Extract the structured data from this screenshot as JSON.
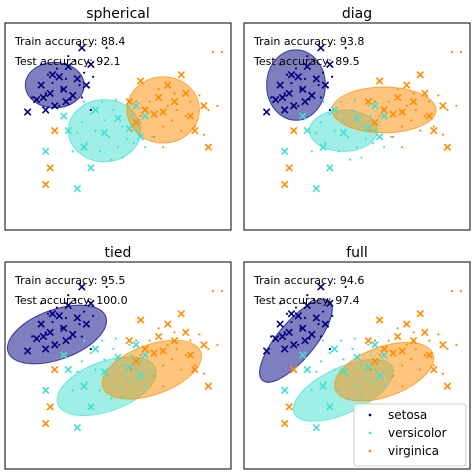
{
  "colors": {
    "setosa": "#000080",
    "versicolor": "#40e0d0",
    "virginica": "#ff8c00"
  },
  "legend": {
    "placement": "bottom-right",
    "panel": 3,
    "entries": [
      {
        "key": "setosa",
        "label": "setosa"
      },
      {
        "key": "versicolor",
        "label": "versicolor"
      },
      {
        "key": "virginica",
        "label": "virginica"
      }
    ]
  },
  "chart_data": [
    {
      "type": "scatter",
      "title": "spherical",
      "train_label": "Train accuracy: 88.4",
      "test_label": "Test accuracy: 92.1",
      "xlim": [
        0,
        100
      ],
      "ylim": [
        0,
        100
      ],
      "ellipses": [
        {
          "class": "setosa",
          "cx": 22,
          "cy": 70,
          "rx": 13,
          "ry": 11,
          "angle": 0
        },
        {
          "class": "versicolor",
          "cx": 44,
          "cy": 48,
          "rx": 16,
          "ry": 15,
          "angle": 0
        },
        {
          "class": "virginica",
          "cx": 70,
          "cy": 58,
          "rx": 16,
          "ry": 16,
          "angle": 0
        }
      ]
    },
    {
      "type": "scatter",
      "title": "diag",
      "train_label": "Train accuracy: 93.8",
      "test_label": "Test accuracy: 89.5",
      "xlim": [
        0,
        100
      ],
      "ylim": [
        0,
        100
      ],
      "ellipses": [
        {
          "class": "setosa",
          "cx": 23,
          "cy": 70,
          "rx": 13,
          "ry": 17,
          "angle": 0
        },
        {
          "class": "versicolor",
          "cx": 44,
          "cy": 48,
          "rx": 15,
          "ry": 10,
          "angle": 0
        },
        {
          "class": "virginica",
          "cx": 62,
          "cy": 58,
          "rx": 23,
          "ry": 11,
          "angle": 0
        }
      ]
    },
    {
      "type": "scatter",
      "title": "tied",
      "train_label": "Train accuracy: 95.5",
      "test_label": "Test accuracy: 100.0",
      "xlim": [
        0,
        100
      ],
      "ylim": [
        0,
        100
      ],
      "ellipses": [
        {
          "class": "setosa",
          "cx": 23,
          "cy": 65,
          "rx": 23,
          "ry": 12,
          "angle": 20
        },
        {
          "class": "versicolor",
          "cx": 45,
          "cy": 40,
          "rx": 23,
          "ry": 12,
          "angle": 20
        },
        {
          "class": "virginica",
          "cx": 65,
          "cy": 48,
          "rx": 23,
          "ry": 12,
          "angle": 20
        }
      ]
    },
    {
      "type": "scatter",
      "title": "full",
      "train_label": "Train accuracy: 94.6",
      "test_label": "Test accuracy: 97.4",
      "xlim": [
        0,
        100
      ],
      "ylim": [
        0,
        100
      ],
      "ellipses": [
        {
          "class": "setosa",
          "cx": 23,
          "cy": 62,
          "rx": 23,
          "ry": 9,
          "angle": 50
        },
        {
          "class": "versicolor",
          "cx": 44,
          "cy": 38,
          "rx": 24,
          "ry": 11,
          "angle": 25
        },
        {
          "class": "virginica",
          "cx": 62,
          "cy": 47,
          "rx": 23,
          "ry": 12,
          "angle": 20
        }
      ]
    }
  ],
  "points": {
    "setosa": {
      "dots": [
        [
          16,
          80
        ],
        [
          19,
          75
        ],
        [
          21,
          71
        ],
        [
          23,
          78
        ],
        [
          25,
          68
        ],
        [
          27,
          73
        ],
        [
          29,
          63
        ],
        [
          31,
          82
        ],
        [
          33,
          70
        ],
        [
          35,
          76
        ],
        [
          37,
          69
        ],
        [
          39,
          74
        ],
        [
          18,
          66
        ],
        [
          28,
          84
        ],
        [
          45,
          88
        ],
        [
          12,
          64
        ],
        [
          24,
          60
        ],
        [
          34,
          64
        ],
        [
          38,
          58
        ]
      ],
      "crosses": [
        [
          10,
          57
        ],
        [
          14,
          63
        ],
        [
          16,
          70
        ],
        [
          18,
          58
        ],
        [
          20,
          66
        ],
        [
          22,
          60
        ],
        [
          24,
          74
        ],
        [
          26,
          68
        ],
        [
          28,
          79
        ],
        [
          30,
          65
        ],
        [
          32,
          73
        ],
        [
          34,
          88
        ],
        [
          36,
          70
        ],
        [
          38,
          80
        ],
        [
          17,
          64
        ],
        [
          27,
          62
        ],
        [
          21,
          75
        ]
      ]
    },
    "versicolor": {
      "dots": [
        [
          32,
          47
        ],
        [
          34,
          52
        ],
        [
          36,
          42
        ],
        [
          38,
          56
        ],
        [
          40,
          48
        ],
        [
          42,
          38
        ],
        [
          44,
          53
        ],
        [
          46,
          45
        ],
        [
          48,
          58
        ],
        [
          50,
          40
        ],
        [
          52,
          50
        ],
        [
          54,
          44
        ],
        [
          56,
          55
        ],
        [
          58,
          48
        ],
        [
          60,
          52
        ],
        [
          62,
          40
        ],
        [
          35,
          62
        ],
        [
          47,
          34
        ],
        [
          55,
          60
        ],
        [
          65,
          45
        ],
        [
          30,
          38
        ],
        [
          43,
          62
        ],
        [
          52,
          35
        ],
        [
          57,
          42
        ],
        [
          49,
          63
        ]
      ],
      "crosses": [
        [
          28,
          48
        ],
        [
          35,
          40
        ],
        [
          40,
          58
        ],
        [
          44,
          47
        ],
        [
          50,
          54
        ],
        [
          55,
          49
        ],
        [
          58,
          60
        ],
        [
          60,
          45
        ],
        [
          62,
          55
        ],
        [
          38,
          30
        ],
        [
          32,
          20
        ],
        [
          18,
          38
        ],
        [
          26,
          55
        ]
      ]
    },
    "virginica": {
      "dots": [
        [
          56,
          48
        ],
        [
          60,
          55
        ],
        [
          64,
          62
        ],
        [
          66,
          45
        ],
        [
          70,
          50
        ],
        [
          72,
          60
        ],
        [
          74,
          53
        ],
        [
          76,
          58
        ],
        [
          78,
          48
        ],
        [
          80,
          55
        ],
        [
          82,
          62
        ],
        [
          84,
          50
        ],
        [
          86,
          65
        ],
        [
          90,
          58
        ],
        [
          88,
          46
        ],
        [
          58,
          62
        ],
        [
          68,
          68
        ],
        [
          75,
          66
        ],
        [
          92,
          86
        ],
        [
          96,
          86
        ],
        [
          94,
          60
        ],
        [
          70,
          40
        ]
      ],
      "crosses": [
        [
          55,
          62
        ],
        [
          58,
          52
        ],
        [
          62,
          58
        ],
        [
          66,
          56
        ],
        [
          68,
          64
        ],
        [
          70,
          57
        ],
        [
          72,
          70
        ],
        [
          75,
          62
        ],
        [
          78,
          75
        ],
        [
          80,
          66
        ],
        [
          82,
          55
        ],
        [
          84,
          48
        ],
        [
          88,
          60
        ],
        [
          90,
          40
        ],
        [
          60,
          72
        ],
        [
          20,
          30
        ],
        [
          18,
          22
        ],
        [
          22,
          48
        ]
      ]
    }
  }
}
